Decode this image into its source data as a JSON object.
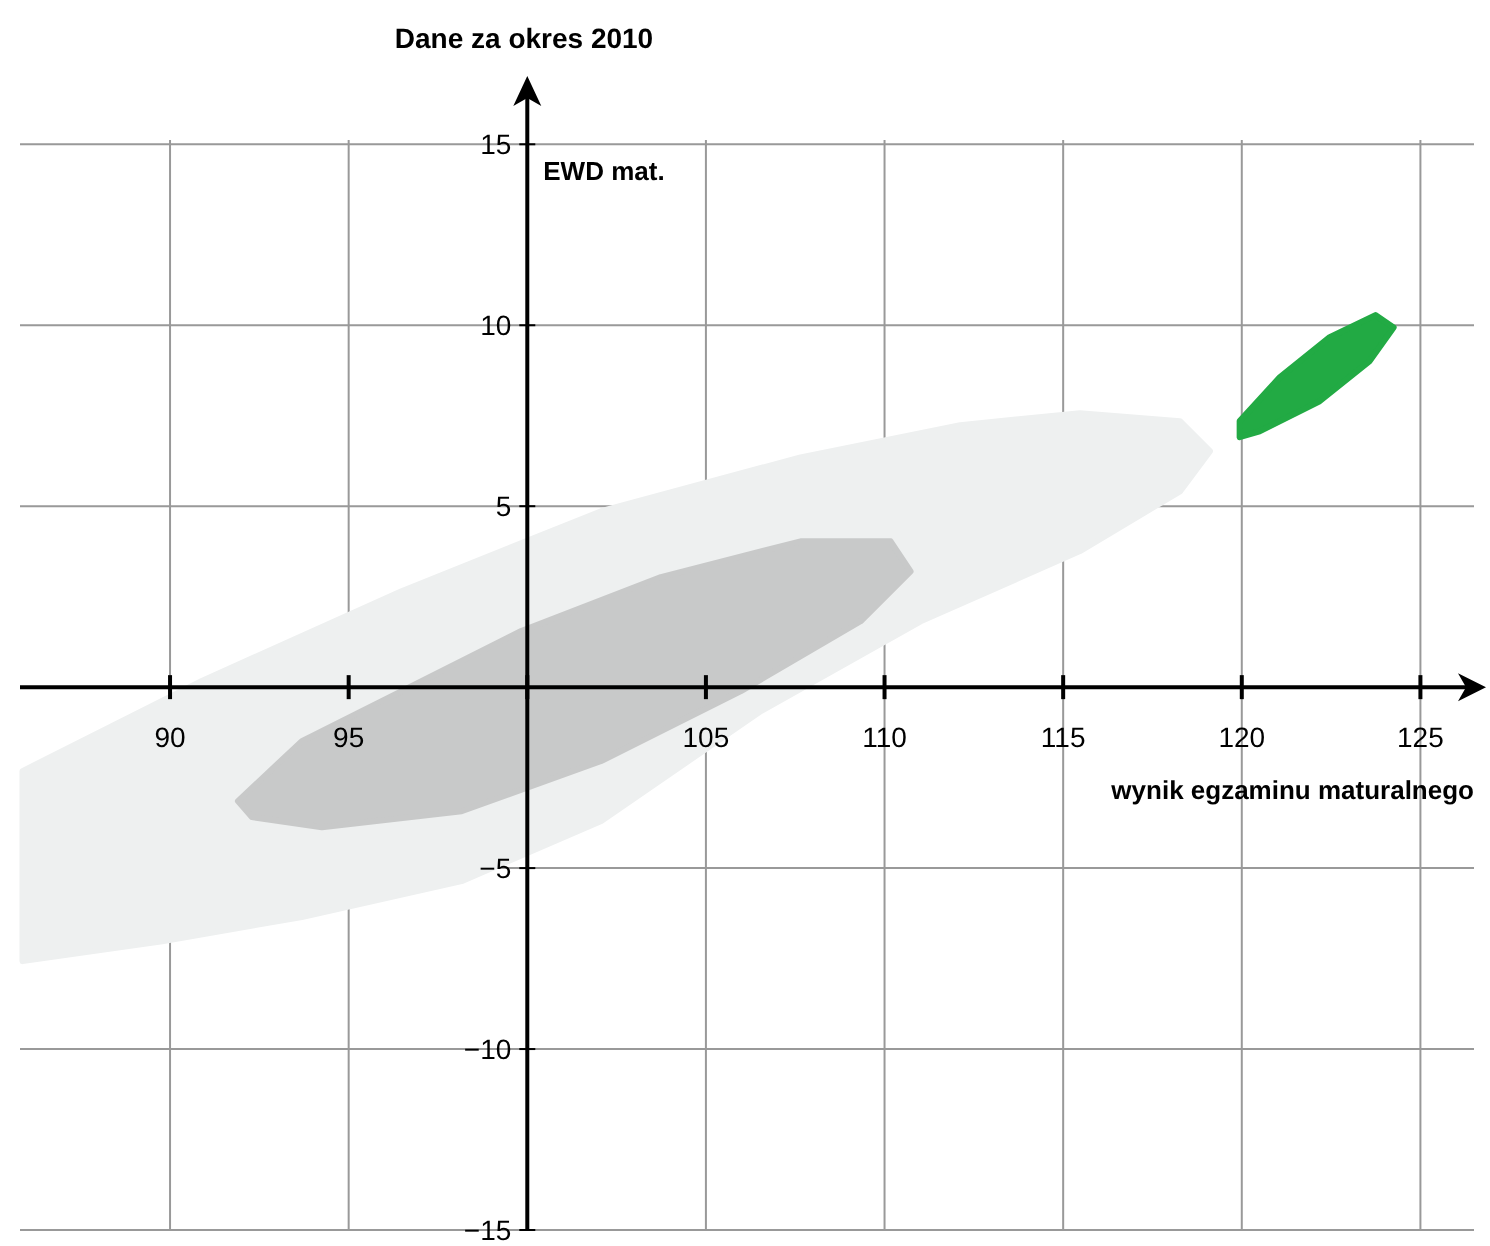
{
  "chart_data": {
    "type": "area",
    "title": "Dane za okres 2010",
    "xlabel": "wynik egzaminu maturalnego",
    "ylabel": "EWD mat.",
    "xlim": [
      85.8,
      126.5
    ],
    "ylim": [
      -15,
      16.5
    ],
    "xticks": [
      90,
      95,
      {
        "value": 100,
        "label": null
      },
      105,
      110,
      115,
      120,
      125
    ],
    "yticks": [
      -15,
      -10,
      -5,
      {
        "value": 0,
        "label": null
      },
      5,
      10,
      15
    ],
    "grid": true,
    "series": [
      {
        "color": "#eef0f0",
        "x": [
          85.87,
          90.89,
          96.48,
          102.07,
          107.65,
          112.12,
          115.47,
          118.27,
          119.11,
          118.27,
          115.47,
          111.01,
          106.54,
          102.07,
          98.16,
          93.69,
          89.78,
          85.87
        ],
        "values": [
          -2.32,
          0.17,
          2.65,
          4.86,
          6.35,
          7.24,
          7.57,
          7.35,
          6.52,
          5.41,
          3.76,
          1.82,
          -0.66,
          -3.7,
          -5.36,
          -6.35,
          -7.02,
          -7.57
        ]
      },
      {
        "color": "#c8c9c9",
        "x": [
          91.9,
          93.69,
          96.48,
          99.83,
          103.74,
          107.65,
          110.17,
          110.73,
          109.33,
          105.98,
          102.07,
          98.16,
          94.25,
          92.29
        ],
        "values": [
          -3.15,
          -1.49,
          -0.11,
          1.55,
          3.04,
          4.03,
          4.03,
          3.2,
          1.82,
          -0.11,
          -2.04,
          -3.43,
          -3.87,
          -3.59
        ]
      },
      {
        "color": "#22aa44",
        "x": [
          119.94,
          121.06,
          122.46,
          123.74,
          124.25,
          123.58,
          122.18,
          120.5,
          119.94
        ],
        "values": [
          7.35,
          8.56,
          9.67,
          10.28,
          9.94,
          9.01,
          7.9,
          7.07,
          6.91
        ]
      }
    ]
  }
}
